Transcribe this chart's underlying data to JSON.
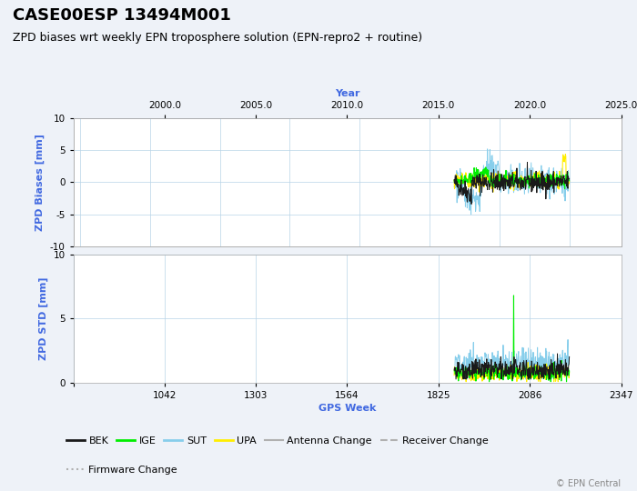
{
  "title": "CASE00ESP 13494M001",
  "subtitle": "ZPD biases wrt weekly EPN troposphere solution (EPN-repro2 + routine)",
  "xlabel_top": "Year",
  "xlabel_bottom": "GPS Week",
  "ylabel_top": "ZPD Biases [mm]",
  "ylabel_bottom": "ZPD STD [mm]",
  "copyright": "© EPN Central",
  "year_ticks": [
    2000.0,
    2005.0,
    2010.0,
    2015.0,
    2020.0,
    2025.0
  ],
  "gps_week_ticks": [
    781,
    1042,
    1303,
    1564,
    1825,
    2086,
    2347
  ],
  "gps_week_labels": [
    "",
    "1042",
    "1303",
    "1564",
    "1825",
    "2086",
    "2347"
  ],
  "xlim_gps": [
    781,
    2347
  ],
  "ylim_bias": [
    -10,
    10
  ],
  "ylim_std": [
    0,
    10
  ],
  "bias_yticks": [
    -10,
    -5,
    0,
    5,
    10
  ],
  "std_yticks": [
    0,
    5,
    10
  ],
  "data_start_week": 1870,
  "data_end_week": 2200,
  "colors": {
    "BEK": "#1a1a1a",
    "IGE": "#00ee00",
    "SUT": "#87ceeb",
    "UPA": "#ffee00",
    "antenna": "#b0b0b0",
    "receiver": "#b0b0b0",
    "firmware": "#b0b0b0"
  },
  "axis_label_color": "#4169e1",
  "grid_color": "#b8d4e8",
  "background_color": "#eef2f8",
  "plot_background": "#ffffff",
  "label_fontsize": 8,
  "title_fontsize": 13,
  "subtitle_fontsize": 9
}
